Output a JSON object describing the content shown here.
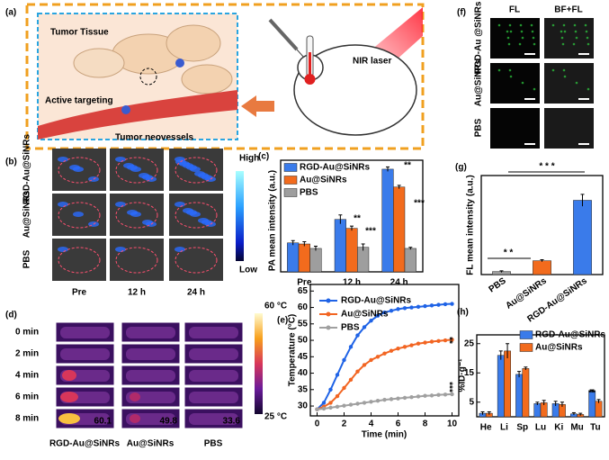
{
  "panel_labels": [
    "(a)",
    "(b)",
    "(c)",
    "(d)",
    "(e)",
    "(f)",
    "(g)",
    "(h)"
  ],
  "panel_a": {
    "title": "Tumor Tissue",
    "labels": [
      "Active targeting",
      "Tumor neovessels",
      "NIR laser"
    ]
  },
  "panel_b": {
    "rows": [
      "RGD-Au@SiNRs",
      "Au@SiNRs",
      "PBS"
    ],
    "columns": [
      "Pre",
      "12 h",
      "24 h"
    ],
    "colorbar": [
      "High",
      "Low"
    ]
  },
  "panel_d": {
    "rows": [
      "0 min",
      "2 min",
      "4 min",
      "6 min",
      "8 min"
    ],
    "columns": [
      "RGD-Au@SiNRs",
      "Au@SiNRs",
      "PBS"
    ],
    "temperatures": [
      60.1,
      49.8,
      33.6
    ],
    "colorbar": [
      "60 °C",
      "25 °C"
    ]
  },
  "panel_f": {
    "columns": [
      "FL",
      "BF+FL"
    ],
    "rows": [
      "RGD-Au @SiNRs",
      "Au@SiNRs",
      "PBS"
    ]
  },
  "chart_data": [
    {
      "type": "bar",
      "ylabel": "PA mean intensity (a.u.)",
      "categories": [
        "Pre",
        "12 h",
        "24 h"
      ],
      "series": [
        {
          "name": "RGD-Au@SiNRs",
          "color": "#3a7bea",
          "values": [
            26,
            47,
            92
          ],
          "errors": [
            2,
            4,
            2
          ]
        },
        {
          "name": "Au@SiNRs",
          "color": "#f26b1d",
          "values": [
            25,
            39,
            76
          ],
          "errors": [
            2,
            2,
            1.5
          ]
        },
        {
          "name": "PBS",
          "color": "#9e9e9e",
          "values": [
            21,
            22,
            21
          ],
          "errors": [
            2,
            3,
            1
          ]
        }
      ],
      "ylim": [
        0,
        100
      ],
      "legend": "upper left",
      "annotations": [
        "**",
        "***",
        "**",
        "***"
      ]
    },
    {
      "type": "line",
      "xlabel": "Time (min)",
      "ylabel": "Temperature (°C)",
      "x": [
        0,
        0.5,
        1,
        1.5,
        2,
        2.5,
        3,
        3.5,
        4,
        4.5,
        5,
        5.5,
        6,
        6.5,
        7,
        7.5,
        8,
        8.5,
        9,
        9.5,
        10
      ],
      "series": [
        {
          "name": "RGD-Au@SiNRs",
          "color": "#1f63e6",
          "values": [
            29,
            31,
            35,
            39.5,
            44,
            48,
            51.5,
            54,
            56,
            57.5,
            58.5,
            59,
            59.5,
            59.8,
            60,
            60.2,
            60.4,
            60.6,
            60.8,
            61,
            61.1
          ]
        },
        {
          "name": "Au@SiNRs",
          "color": "#f26522",
          "values": [
            29,
            29.8,
            31,
            33,
            35.5,
            38,
            40.5,
            42.5,
            44,
            45,
            46,
            46.8,
            47.5,
            48,
            48.5,
            49,
            49.3,
            49.6,
            49.8,
            50,
            50.2
          ]
        },
        {
          "name": "PBS",
          "color": "#a0a0a0",
          "values": [
            29,
            29.2,
            29.5,
            29.8,
            30.1,
            30.4,
            30.7,
            31,
            31.3,
            31.6,
            31.9,
            32.1,
            32.3,
            32.5,
            32.7,
            32.9,
            33.1,
            33.2,
            33.4,
            33.5,
            33.6
          ]
        }
      ],
      "xlim": [
        -0.5,
        10.5
      ],
      "xticks": [
        0,
        2,
        4,
        6,
        8,
        10
      ],
      "ylim": [
        27,
        67
      ],
      "yticks": [
        30,
        35,
        40,
        45,
        50,
        55,
        60,
        65
      ],
      "legend": "upper left",
      "annotations": [
        "**",
        "***"
      ]
    },
    {
      "type": "bar",
      "ylabel": "FL mean intensity (a.u.)",
      "categories": [
        "PBS",
        "Au@SiNRs",
        "RGD-Au@SiNRs"
      ],
      "values": [
        3,
        14,
        75
      ],
      "errors": [
        0.8,
        1,
        6
      ],
      "colors": [
        "#9e9e9e",
        "#f26b1d",
        "#3a7bea"
      ],
      "ylim": [
        0,
        100
      ],
      "annotations": [
        "* *",
        "* * *"
      ]
    },
    {
      "type": "bar",
      "ylabel": "%ID·g⁻¹",
      "categories": [
        "He",
        "Li",
        "Sp",
        "Lu",
        "Ki",
        "Mu",
        "Tu"
      ],
      "series": [
        {
          "name": "RGD-Au@SiNRs",
          "color": "#3a7bea",
          "values": [
            1.2,
            21,
            14.5,
            4.5,
            4.5,
            1,
            8.8
          ],
          "errors": [
            0.5,
            1.5,
            1,
            0.5,
            0.8,
            0.4,
            0.4
          ]
        },
        {
          "name": "Au@SiNRs",
          "color": "#f26b1d",
          "values": [
            1.2,
            22.5,
            16.5,
            4.8,
            4.2,
            0.8,
            5.3
          ],
          "errors": [
            0.5,
            2.5,
            0.5,
            0.8,
            0.8,
            0.4,
            0.6
          ]
        }
      ],
      "ylim": [
        0,
        28
      ],
      "yticks": [
        5,
        15,
        25
      ],
      "legend": "upper right",
      "annotations": [
        "**"
      ]
    }
  ]
}
